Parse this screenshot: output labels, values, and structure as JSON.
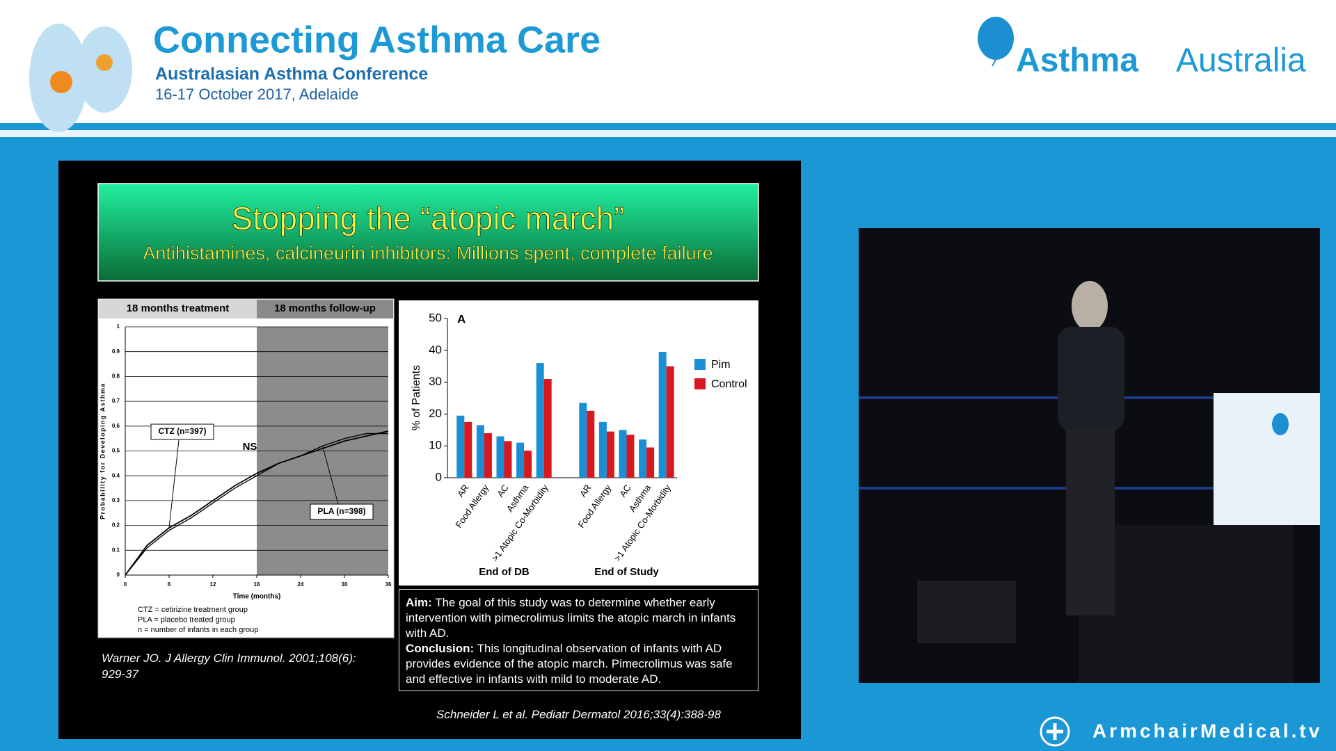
{
  "header": {
    "title": "Connecting Asthma Care",
    "subtitle": "Australasian Asthma Conference",
    "date": "16-17 October 2017, Adelaide",
    "brand": "Asthma",
    "brand2": "Australia"
  },
  "slide": {
    "title": "Stopping the “atopic march”",
    "subtitle": "Antihistamines, calcineurin inhibitors: Millions spent, complete failure",
    "aim_label": "Aim:",
    "aim_text": "The goal of this study was to determine whether early intervention with pimecrolimus limits the atopic march in infants with AD.",
    "conclusion_label": "Conclusion:",
    "conclusion_text": "This longitudinal observation of infants with AD provides evidence of the atopic march. Pimecrolimus was safe and effective in infants with mild to moderate AD.",
    "citation_left": "Warner JO. J Allergy Clin Immunol. 2001;108(6): 929-37",
    "citation_right": "Schneider L et al. Pediatr Dermatol 2016;33(4):388-98"
  },
  "footer": {
    "brand": "ArmchairMedical.tv"
  },
  "chart_data": [
    {
      "type": "line",
      "x_label": "Time (months)",
      "y_label": "Probability for Developing Asthma",
      "annotations": {
        "treatment": "18 months treatment",
        "followup": "18 months follow-up",
        "ns": "NS",
        "notes": [
          "CTZ = cetirizine treatment group",
          "PLA = placebo treated group",
          "n = number of infants in each group"
        ]
      },
      "shaded_xrange": [
        18,
        36
      ],
      "x": [
        0,
        3,
        6,
        9,
        12,
        15,
        18,
        21,
        24,
        27,
        30,
        33,
        36
      ],
      "series": [
        {
          "name": "CTZ (n=397)",
          "color": "#000000",
          "values": [
            0,
            0.12,
            0.19,
            0.24,
            0.3,
            0.36,
            0.41,
            0.45,
            0.48,
            0.51,
            0.54,
            0.56,
            0.58
          ]
        },
        {
          "name": "PLA (n=398)",
          "color": "#000000",
          "values": [
            0,
            0.11,
            0.18,
            0.23,
            0.29,
            0.35,
            0.4,
            0.45,
            0.48,
            0.52,
            0.55,
            0.57,
            0.57
          ]
        }
      ],
      "xlim": [
        0,
        36
      ],
      "xticks": [
        0,
        6,
        12,
        18,
        24,
        30,
        36
      ],
      "ylim": [
        0,
        1
      ],
      "yticks": [
        0,
        0.1,
        0.2,
        0.3,
        0.4,
        0.5,
        0.6,
        0.7,
        0.8,
        0.9,
        1
      ],
      "grid": true
    },
    {
      "type": "bar",
      "panel": "A",
      "y_label": "% of Patients",
      "groups": [
        "End of DB",
        "End of Study"
      ],
      "categories": [
        "AR",
        "Food Allergy",
        "AC",
        "Asthma",
        ">1 Atopic Co-Morbidity",
        "AR",
        "Food Allergy",
        "AC",
        "Asthma",
        ">1 Atopic Co-Morbidity"
      ],
      "series": [
        {
          "name": "Pim",
          "color": "#1a8fd6",
          "values": [
            19.5,
            16.5,
            13,
            11,
            36,
            23.5,
            17.5,
            15,
            12,
            39.5
          ]
        },
        {
          "name": "Control",
          "color": "#d7191f",
          "values": [
            17.5,
            14,
            11.5,
            8.5,
            31,
            21,
            14.5,
            13.5,
            9.5,
            35
          ]
        }
      ],
      "ylim": [
        0,
        50
      ],
      "yticks": [
        0,
        10,
        20,
        30,
        40,
        50
      ],
      "legend": "right"
    }
  ]
}
